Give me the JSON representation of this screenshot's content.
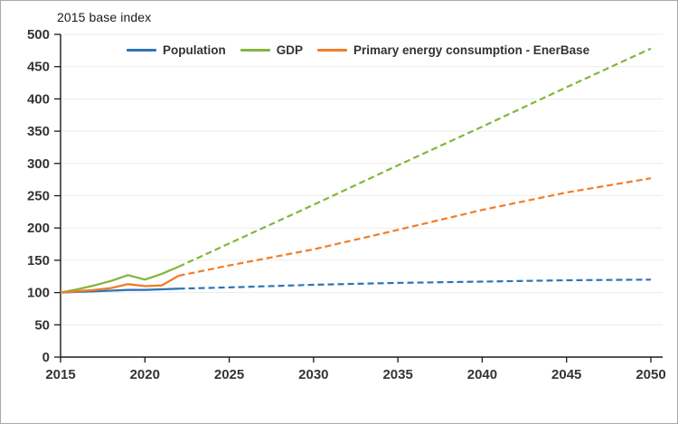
{
  "chart_data": {
    "type": "line",
    "title": "2015 base index",
    "xlabel": "",
    "ylabel": "2015 base index",
    "x_range": [
      2015,
      2050
    ],
    "x_ticks": [
      2015,
      2020,
      2025,
      2030,
      2035,
      2040,
      2045,
      2050
    ],
    "y_range": [
      0,
      500
    ],
    "y_ticks": [
      0,
      50,
      100,
      150,
      200,
      250,
      300,
      350,
      400,
      450,
      500
    ],
    "grid": "horizontal-only",
    "legend_position": "top-inside",
    "line_styles": {
      "historical_2015_2022": "solid",
      "projection_2022_2050": "dashed"
    },
    "colors": {
      "population": "#2E75B6",
      "gdp": "#84B53C",
      "energy": "#F07D28",
      "gridline": "#ECECEC",
      "axis": "#1a1a1a",
      "tick_text": "#343434"
    },
    "series": [
      {
        "name": "Population",
        "color": "#2E75B6",
        "historical": {
          "years": [
            2015,
            2016,
            2017,
            2018,
            2019,
            2020,
            2021,
            2022
          ],
          "values": [
            100,
            101,
            102,
            103,
            104,
            104,
            105,
            106
          ]
        },
        "projection": {
          "years": [
            2022,
            2025,
            2030,
            2035,
            2040,
            2045,
            2050
          ],
          "values": [
            106,
            108,
            112,
            115,
            117,
            119,
            120
          ]
        }
      },
      {
        "name": "GDP",
        "color": "#84B53C",
        "historical": {
          "years": [
            2015,
            2016,
            2017,
            2018,
            2019,
            2020,
            2021,
            2022
          ],
          "values": [
            100,
            105,
            111,
            118,
            127,
            120,
            129,
            140
          ]
        },
        "projection": {
          "years": [
            2022,
            2025,
            2030,
            2035,
            2040,
            2045,
            2050
          ],
          "values": [
            140,
            176,
            236,
            297,
            357,
            418,
            478
          ]
        }
      },
      {
        "name": "Primary energy consumption - EnerBase",
        "color": "#F07D28",
        "historical": {
          "years": [
            2015,
            2016,
            2017,
            2018,
            2019,
            2020,
            2021,
            2022
          ],
          "values": [
            100,
            102,
            104,
            107,
            113,
            110,
            111,
            126
          ]
        },
        "projection": {
          "years": [
            2022,
            2025,
            2030,
            2035,
            2040,
            2045,
            2050
          ],
          "values": [
            126,
            142,
            167,
            197,
            228,
            255,
            277
          ]
        }
      }
    ]
  }
}
